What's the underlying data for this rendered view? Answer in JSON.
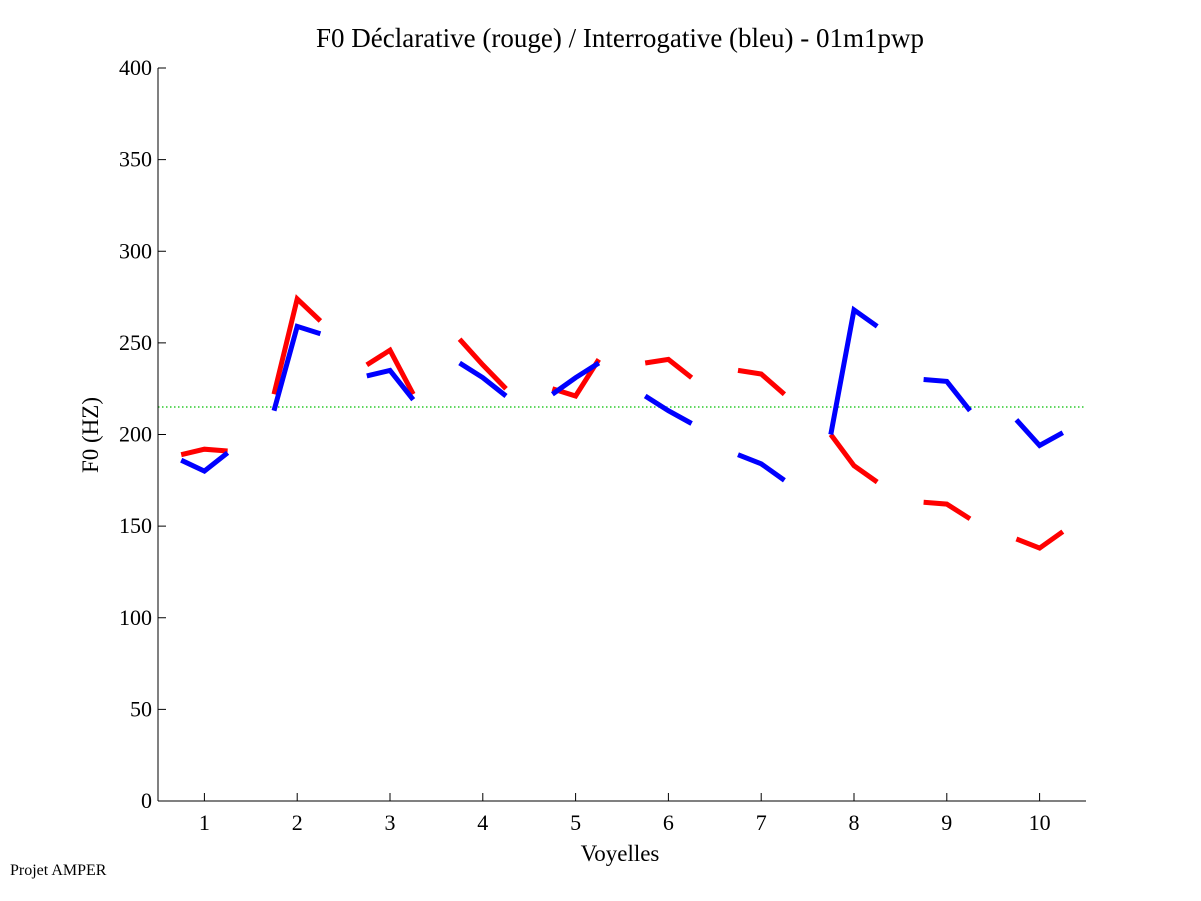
{
  "footer": "Projet AMPER",
  "colors": {
    "declarative": "#ff0000",
    "interrogative": "#0000ff",
    "reference": "#00c000",
    "axis": "#000000"
  },
  "chart_data": {
    "type": "line",
    "title": "F0 Déclarative (rouge) / Interrogative (bleu) - 01m1pwp",
    "xlabel": "Voyelles",
    "ylabel": "F0 (HZ)",
    "xlim": [
      0.5,
      10.5
    ],
    "ylim": [
      0,
      400
    ],
    "xticks": [
      1,
      2,
      3,
      4,
      5,
      6,
      7,
      8,
      9,
      10
    ],
    "yticks": [
      0,
      50,
      100,
      150,
      200,
      250,
      300,
      350,
      400
    ],
    "reference_line": {
      "y": 215,
      "style": "dotted"
    },
    "series": [
      {
        "name": "Déclarative (rouge)",
        "color": "#ff0000",
        "segments": [
          {
            "x": [
              0.75,
              1.0,
              1.25
            ],
            "y": [
              189,
              192,
              191
            ]
          },
          {
            "x": [
              1.75,
              2.0,
              2.25
            ],
            "y": [
              222,
              274,
              262
            ]
          },
          {
            "x": [
              2.75,
              3.0,
              3.25
            ],
            "y": [
              238,
              246,
              222
            ]
          },
          {
            "x": [
              3.75,
              4.0,
              4.25
            ],
            "y": [
              252,
              238,
              225
            ]
          },
          {
            "x": [
              4.75,
              5.0,
              5.25
            ],
            "y": [
              225,
              221,
              241
            ]
          },
          {
            "x": [
              5.75,
              6.0,
              6.25
            ],
            "y": [
              239,
              241,
              231
            ]
          },
          {
            "x": [
              6.75,
              7.0,
              7.25
            ],
            "y": [
              235,
              233,
              222
            ]
          },
          {
            "x": [
              7.75,
              8.0,
              8.25
            ],
            "y": [
              200,
              183,
              174
            ]
          },
          {
            "x": [
              8.75,
              9.0,
              9.25
            ],
            "y": [
              163,
              162,
              154
            ]
          },
          {
            "x": [
              9.75,
              10.0,
              10.25
            ],
            "y": [
              143,
              138,
              147
            ]
          }
        ]
      },
      {
        "name": "Interrogative (bleu)",
        "color": "#0000ff",
        "segments": [
          {
            "x": [
              0.75,
              1.0,
              1.25
            ],
            "y": [
              186,
              180,
              190
            ]
          },
          {
            "x": [
              1.75,
              2.0,
              2.25
            ],
            "y": [
              213,
              259,
              255
            ]
          },
          {
            "x": [
              2.75,
              3.0,
              3.25
            ],
            "y": [
              232,
              235,
              219
            ]
          },
          {
            "x": [
              3.75,
              4.0,
              4.25
            ],
            "y": [
              239,
              231,
              221
            ]
          },
          {
            "x": [
              4.75,
              5.0,
              5.25
            ],
            "y": [
              222,
              231,
              239
            ]
          },
          {
            "x": [
              5.75,
              6.0,
              6.25
            ],
            "y": [
              221,
              213,
              206
            ]
          },
          {
            "x": [
              6.75,
              7.0,
              7.25
            ],
            "y": [
              189,
              184,
              175
            ]
          },
          {
            "x": [
              7.75,
              8.0,
              8.25
            ],
            "y": [
              200,
              268,
              259
            ]
          },
          {
            "x": [
              8.75,
              9.0,
              9.25
            ],
            "y": [
              230,
              229,
              213
            ]
          },
          {
            "x": [
              9.75,
              10.0,
              10.25
            ],
            "y": [
              208,
              194,
              201
            ]
          }
        ]
      }
    ]
  }
}
